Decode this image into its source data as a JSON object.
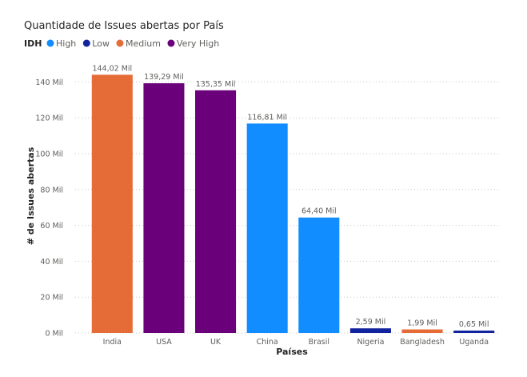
{
  "chart_data": {
    "type": "bar",
    "title": "Quantidade de Issues abertas por País",
    "xlabel": "Países",
    "ylabel": "# de Issues abertas",
    "ylim": [
      0,
      150
    ],
    "y_ticks": [
      0,
      20,
      40,
      60,
      80,
      100,
      120,
      140
    ],
    "y_tick_labels": [
      "0 Mil",
      "20 Mil",
      "40 Mil",
      "60 Mil",
      "80 Mil",
      "100 Mil",
      "120 Mil",
      "140 Mil"
    ],
    "grid": true,
    "legend": {
      "title": "IDH",
      "placement": "top-left",
      "items": [
        {
          "name": "High",
          "color": "#118DFF"
        },
        {
          "name": "Low",
          "color": "#12239E"
        },
        {
          "name": "Medium",
          "color": "#E66C37"
        },
        {
          "name": "Very High",
          "color": "#6B007B"
        }
      ]
    },
    "categories": [
      "India",
      "USA",
      "UK",
      "China",
      "Brasil",
      "Nigeria",
      "Bangladesh",
      "Uganda"
    ],
    "values": [
      144.02,
      139.29,
      135.35,
      116.81,
      64.4,
      2.59,
      1.99,
      0.65
    ],
    "value_labels": [
      "144,02 Mil",
      "139,29 Mil",
      "135,35 Mil",
      "116,81 Mil",
      "64,40 Mil",
      "2,59 Mil",
      "1,99 Mil",
      "0,65 Mil"
    ],
    "groups": [
      "Medium",
      "Very High",
      "Very High",
      "High",
      "High",
      "Low",
      "Medium",
      "Low"
    ]
  }
}
